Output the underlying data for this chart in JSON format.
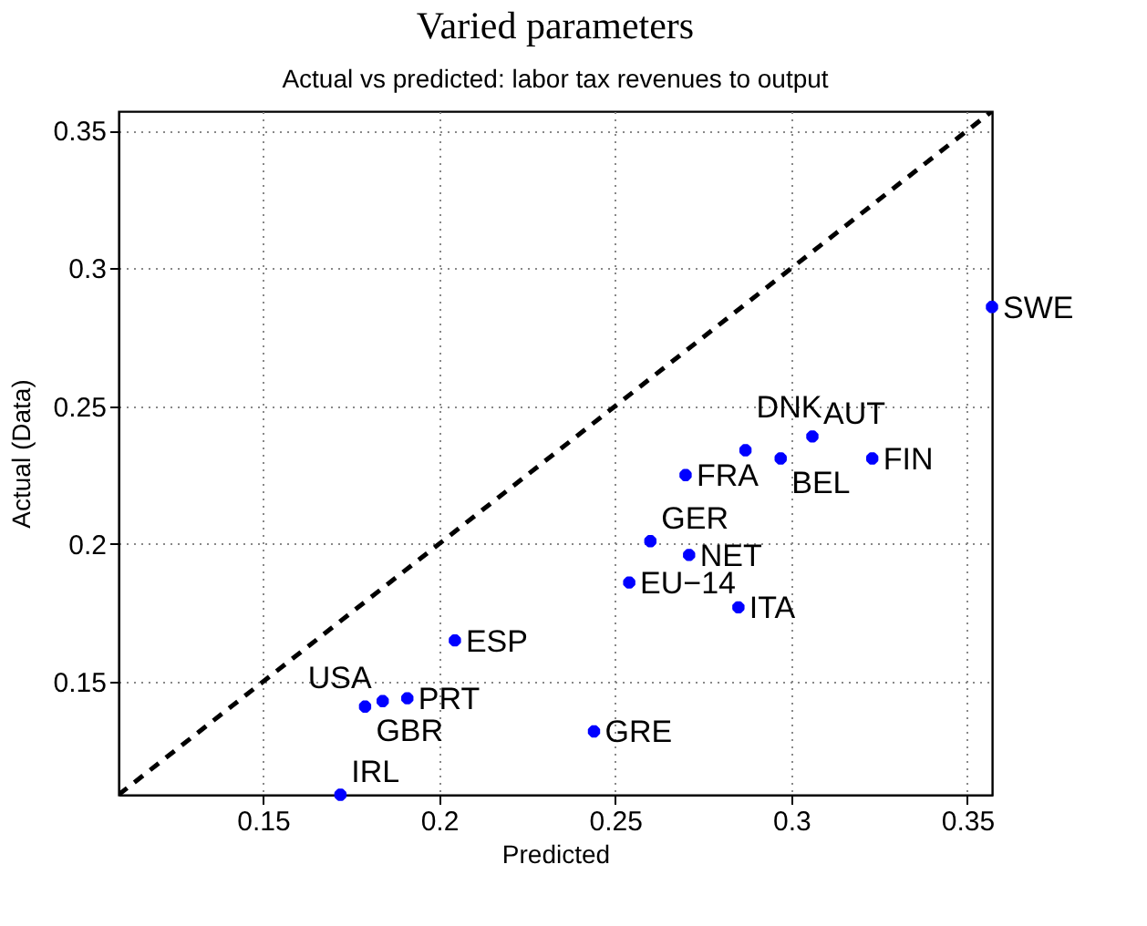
{
  "chart_data": {
    "type": "scatter",
    "title": "Varied parameters",
    "subtitle": "Actual vs predicted: labor tax revenues to output",
    "xlabel": "Predicted",
    "ylabel": "Actual (Data)",
    "xlim": [
      0.109,
      0.357
    ],
    "ylim": [
      0.109,
      0.357
    ],
    "xticks": [
      0.15,
      0.2,
      0.25,
      0.3,
      0.35
    ],
    "yticks": [
      0.15,
      0.2,
      0.25,
      0.3,
      0.35
    ],
    "grid": true,
    "series": [
      {
        "color": "#0000ff",
        "marker": "cross",
        "x": [
          0.357,
          0.306,
          0.287,
          0.297,
          0.323,
          0.27,
          0.26,
          0.271,
          0.254,
          0.285,
          0.2045,
          0.244,
          0.172,
          0.179,
          0.184,
          0.191
        ],
        "values": [
          0.286,
          0.239,
          0.234,
          0.231,
          0.231,
          0.225,
          0.201,
          0.196,
          0.186,
          0.177,
          0.165,
          0.132,
          0.109,
          0.141,
          0.143,
          0.144
        ],
        "value_labels": [
          "SWE",
          "AUT",
          "DNK",
          "BEL",
          "FIN",
          "FRA",
          "GER",
          "NET",
          "EU−14",
          "ITA",
          "ESP",
          "GRE",
          "IRL",
          "GBR",
          "USA",
          "PRT"
        ]
      },
      {
        "type": "line",
        "color": "#000000",
        "line_style": "dashed",
        "marker": "none",
        "x": [
          0.109,
          0.357
        ],
        "values": [
          0.109,
          0.357
        ]
      }
    ]
  }
}
